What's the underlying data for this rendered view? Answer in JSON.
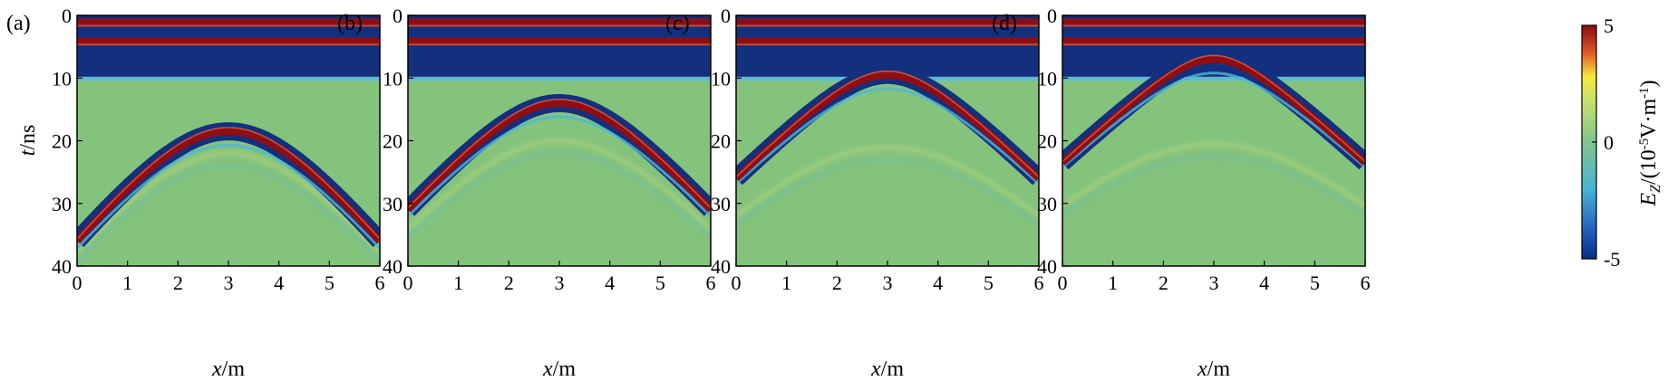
{
  "chart_data": {
    "type": "heatmap",
    "x_range": [
      0,
      6
    ],
    "t_range": [
      0,
      40
    ],
    "x_ticks": [
      "0",
      "1",
      "2",
      "3",
      "4",
      "5",
      "6"
    ],
    "t_ticks": [
      "0",
      "10",
      "20",
      "30",
      "40"
    ],
    "xlabel_var": "x",
    "xlabel_unit": "/m",
    "ylabel_var": "t",
    "ylabel_unit": "/ns",
    "colorbar": {
      "min": -5,
      "max": 5,
      "ticks": [
        "5",
        "0",
        "-5"
      ],
      "label_var": "E",
      "label_sub": "Z",
      "label_unit_pre": "/(10",
      "label_exp1": "-5",
      "label_mid": "V·m",
      "label_exp2": "-1",
      "label_end": ")",
      "colors": [
        "#0b2d84",
        "#1f5fbf",
        "#48b4d4",
        "#7fc68a",
        "#c8e06a",
        "#f6ea3c",
        "#e05a28",
        "#8a0c12"
      ]
    },
    "panels": [
      {
        "label": "(a)",
        "apex_x": 3.0,
        "apex_t": 18.5,
        "edge_t": 36.0,
        "band_t": 16.8,
        "ghost_t": 22.0
      },
      {
        "label": "(b)",
        "apex_x": 3.0,
        "apex_t": 14.0,
        "edge_t": 31.0,
        "band_t": 12.6,
        "ghost_t": 20.0
      },
      {
        "label": "(c)",
        "apex_x": 3.0,
        "apex_t": 9.5,
        "edge_t": 26.0,
        "band_t": 9.3,
        "ghost_t": 21.0
      },
      {
        "label": "(d)",
        "apex_x": 3.0,
        "apex_t": 7.0,
        "edge_t": 23.5,
        "band_t": 7.0,
        "ghost_t": 20.5
      }
    ],
    "direct_wave": {
      "bands_t": [
        0.5,
        3.5
      ],
      "dark_end_t": 9.8
    }
  }
}
